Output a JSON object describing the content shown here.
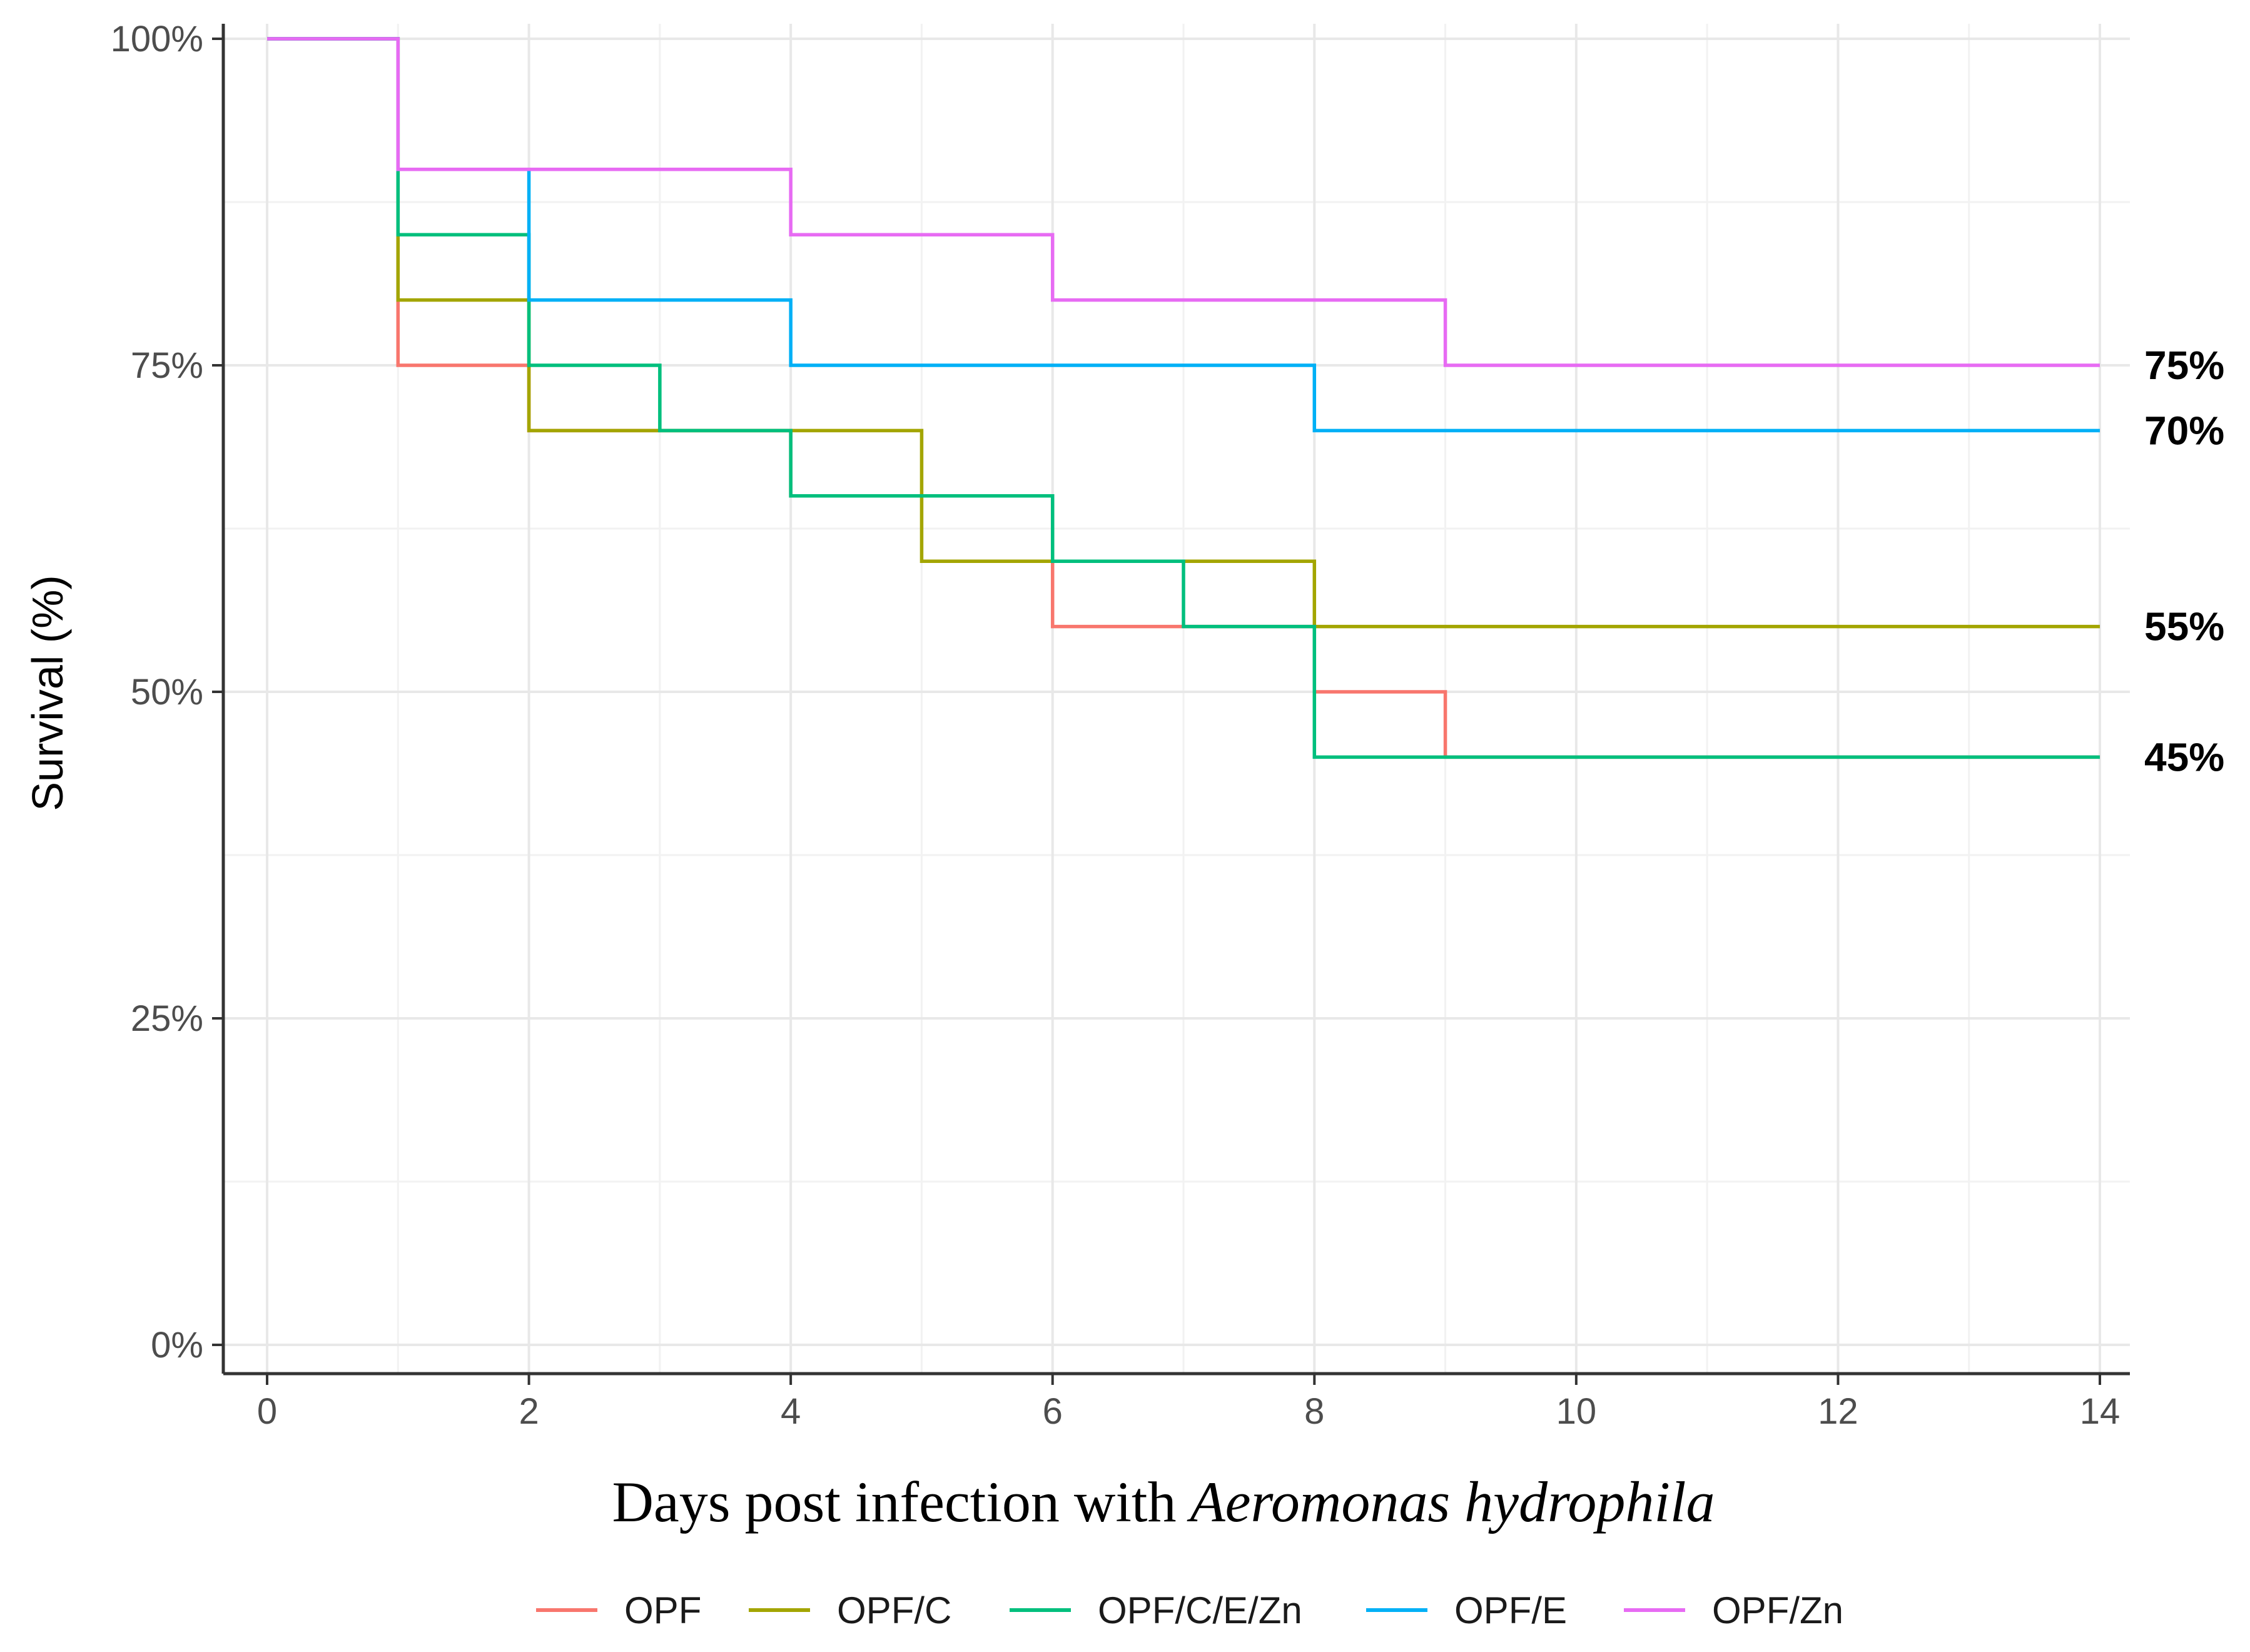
{
  "chart_data": {
    "type": "line",
    "subtype": "step",
    "title": "",
    "xlabel": "Days post infection with",
    "xlabel_italic": "Aeromonas hydrophila",
    "ylabel": "Survival (%)",
    "xlim": [
      0,
      14
    ],
    "ylim": [
      0,
      100
    ],
    "x_ticks": [
      0,
      2,
      4,
      6,
      8,
      10,
      12,
      14
    ],
    "y_ticks": [
      0,
      25,
      50,
      75,
      100
    ],
    "y_tick_labels": [
      "0%",
      "25%",
      "50%",
      "75%",
      "100%"
    ],
    "grid": true,
    "legend_position": "bottom",
    "series": [
      {
        "name": "OPF",
        "color": "#F8766D",
        "x": [
          0,
          1,
          2,
          3,
          4,
          6,
          7,
          8,
          9,
          14
        ],
        "y": [
          100,
          75,
          70,
          70,
          65,
          55,
          55,
          50,
          45,
          45
        ]
      },
      {
        "name": "OPF/C",
        "color": "#A3A500",
        "x": [
          0,
          1,
          2,
          4,
          5,
          8,
          14
        ],
        "y": [
          100,
          80,
          70,
          70,
          60,
          55,
          55
        ]
      },
      {
        "name": "OPF/C/E/Zn",
        "color": "#00BF7D",
        "x": [
          0,
          1,
          2,
          3,
          4,
          6,
          7,
          8,
          14
        ],
        "y": [
          100,
          85,
          75,
          70,
          65,
          60,
          55,
          45,
          45
        ]
      },
      {
        "name": "OPF/E",
        "color": "#00B0F6",
        "x": [
          0,
          1,
          2,
          4,
          8,
          14
        ],
        "y": [
          100,
          90,
          80,
          75,
          70,
          70
        ]
      },
      {
        "name": "OPF/Zn",
        "color": "#E76BF3",
        "x": [
          0,
          1,
          4,
          6,
          9,
          14
        ],
        "y": [
          100,
          90,
          85,
          80,
          75,
          75
        ]
      }
    ],
    "end_labels": [
      {
        "text": "75%",
        "y": 75
      },
      {
        "text": "70%",
        "y": 70
      },
      {
        "text": "55%",
        "y": 55
      },
      {
        "text": "45%",
        "y": 45
      }
    ]
  }
}
